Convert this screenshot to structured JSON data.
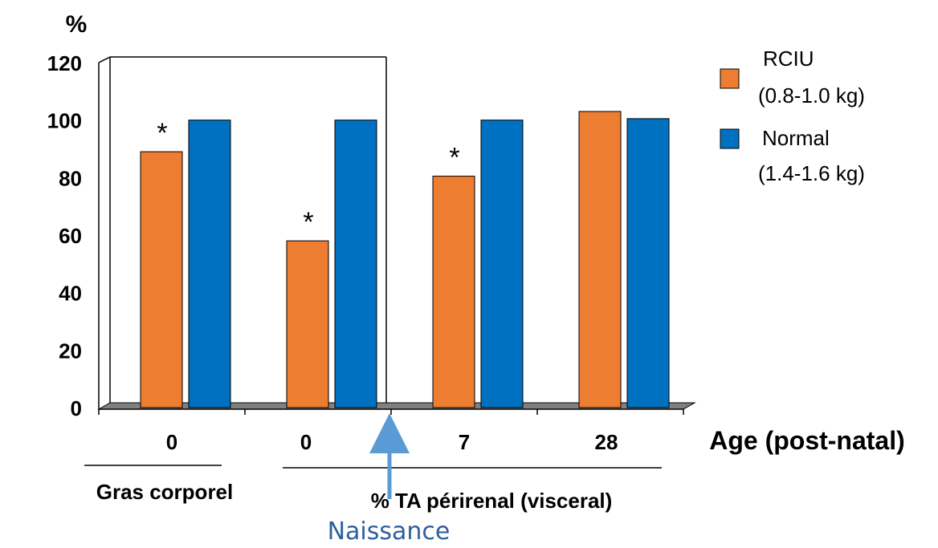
{
  "chart_data": {
    "type": "bar",
    "ylabel": "%",
    "ylim": [
      0,
      120
    ],
    "yticks": [
      0,
      20,
      40,
      60,
      80,
      100,
      120
    ],
    "categories": [
      "0",
      "0",
      "7",
      "28"
    ],
    "xlabel": "Age (post-natal)",
    "group_labels": [
      "Gras corporel",
      "% TA périrenal (visceral)"
    ],
    "series": [
      {
        "name": "RCIU",
        "sublabel": "(0.8-1.0 kg)",
        "color": "#ed7d31",
        "values": [
          89,
          58,
          80.5,
          103
        ]
      },
      {
        "name": "Normal",
        "sublabel": "(1.4-1.6 kg)",
        "color": "#0070c0",
        "values": [
          100,
          100,
          100,
          100.5
        ]
      }
    ],
    "significance_marks": [
      "*",
      "*",
      "*",
      ""
    ],
    "annotation": "Naissance",
    "legend_position": "right",
    "grid": false
  }
}
